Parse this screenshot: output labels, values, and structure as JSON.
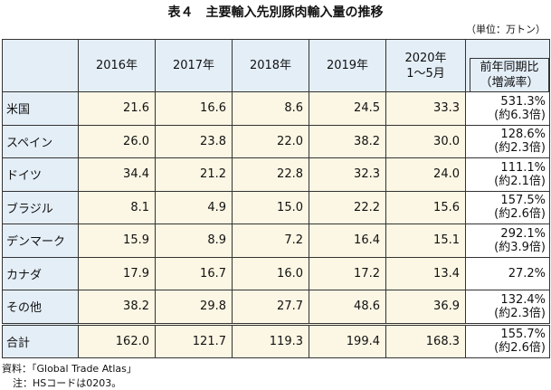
{
  "title": "表４　主要輸入先別豚肉輸入量の推移",
  "unit": "（単位：万トン）",
  "table": {
    "header": {
      "years": [
        "2016年",
        "2017年",
        "2018年",
        "2019年"
      ],
      "period": [
        "2020年",
        "1～5月"
      ],
      "change": [
        "前年同期比",
        "（増減率）"
      ]
    },
    "rows": [
      {
        "label": "米国",
        "values": [
          "21.6",
          "16.6",
          "8.6",
          "24.5",
          "33.3"
        ],
        "change": [
          "531.3%",
          "(約6.3倍)"
        ]
      },
      {
        "label": "スペイン",
        "values": [
          "26.0",
          "23.8",
          "22.0",
          "38.2",
          "30.0"
        ],
        "change": [
          "128.6%",
          "(約2.3倍)"
        ]
      },
      {
        "label": "ドイツ",
        "values": [
          "34.4",
          "21.2",
          "22.8",
          "32.3",
          "24.0"
        ],
        "change": [
          "111.1%",
          "(約2.1倍)"
        ]
      },
      {
        "label": "ブラジル",
        "values": [
          "8.1",
          "4.9",
          "15.0",
          "22.2",
          "15.6"
        ],
        "change": [
          "157.5%",
          "(約2.6倍)"
        ]
      },
      {
        "label": "デンマーク",
        "values": [
          "15.9",
          "8.9",
          "7.2",
          "16.4",
          "15.1"
        ],
        "change": [
          "292.1%",
          "(約3.9倍)"
        ]
      },
      {
        "label": "カナダ",
        "values": [
          "17.9",
          "16.7",
          "16.0",
          "17.2",
          "13.4"
        ],
        "change": [
          "27.2%"
        ]
      },
      {
        "label": "その他",
        "values": [
          "38.2",
          "29.8",
          "27.7",
          "48.6",
          "36.9"
        ],
        "change": [
          "132.4%",
          "(約2.3倍)"
        ]
      },
      {
        "label": "合計",
        "values": [
          "162.0",
          "121.7",
          "119.3",
          "199.4",
          "168.3"
        ],
        "change": [
          "155.7%",
          "(約2.6倍)"
        ]
      }
    ]
  },
  "footer": [
    "資料：「Global Trade Atlas」",
    "注：HSコードは0203。"
  ]
}
